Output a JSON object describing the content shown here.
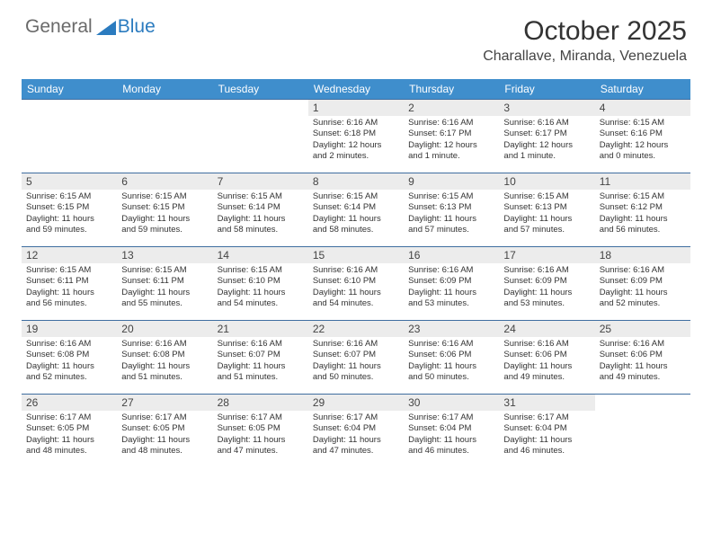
{
  "brand": {
    "part1": "General",
    "part2": "Blue"
  },
  "title": "October 2025",
  "location": "Charallave, Miranda, Venezuela",
  "accent_color": "#3f8ecc",
  "triangle_color": "#2b7bbf",
  "days_of_week": [
    "Sunday",
    "Monday",
    "Tuesday",
    "Wednesday",
    "Thursday",
    "Friday",
    "Saturday"
  ],
  "weeks": [
    [
      null,
      null,
      null,
      {
        "n": "1",
        "sunrise": "Sunrise: 6:16 AM",
        "sunset": "Sunset: 6:18 PM",
        "day1": "Daylight: 12 hours",
        "day2": "and 2 minutes."
      },
      {
        "n": "2",
        "sunrise": "Sunrise: 6:16 AM",
        "sunset": "Sunset: 6:17 PM",
        "day1": "Daylight: 12 hours",
        "day2": "and 1 minute."
      },
      {
        "n": "3",
        "sunrise": "Sunrise: 6:16 AM",
        "sunset": "Sunset: 6:17 PM",
        "day1": "Daylight: 12 hours",
        "day2": "and 1 minute."
      },
      {
        "n": "4",
        "sunrise": "Sunrise: 6:15 AM",
        "sunset": "Sunset: 6:16 PM",
        "day1": "Daylight: 12 hours",
        "day2": "and 0 minutes."
      }
    ],
    [
      {
        "n": "5",
        "sunrise": "Sunrise: 6:15 AM",
        "sunset": "Sunset: 6:15 PM",
        "day1": "Daylight: 11 hours",
        "day2": "and 59 minutes."
      },
      {
        "n": "6",
        "sunrise": "Sunrise: 6:15 AM",
        "sunset": "Sunset: 6:15 PM",
        "day1": "Daylight: 11 hours",
        "day2": "and 59 minutes."
      },
      {
        "n": "7",
        "sunrise": "Sunrise: 6:15 AM",
        "sunset": "Sunset: 6:14 PM",
        "day1": "Daylight: 11 hours",
        "day2": "and 58 minutes."
      },
      {
        "n": "8",
        "sunrise": "Sunrise: 6:15 AM",
        "sunset": "Sunset: 6:14 PM",
        "day1": "Daylight: 11 hours",
        "day2": "and 58 minutes."
      },
      {
        "n": "9",
        "sunrise": "Sunrise: 6:15 AM",
        "sunset": "Sunset: 6:13 PM",
        "day1": "Daylight: 11 hours",
        "day2": "and 57 minutes."
      },
      {
        "n": "10",
        "sunrise": "Sunrise: 6:15 AM",
        "sunset": "Sunset: 6:13 PM",
        "day1": "Daylight: 11 hours",
        "day2": "and 57 minutes."
      },
      {
        "n": "11",
        "sunrise": "Sunrise: 6:15 AM",
        "sunset": "Sunset: 6:12 PM",
        "day1": "Daylight: 11 hours",
        "day2": "and 56 minutes."
      }
    ],
    [
      {
        "n": "12",
        "sunrise": "Sunrise: 6:15 AM",
        "sunset": "Sunset: 6:11 PM",
        "day1": "Daylight: 11 hours",
        "day2": "and 56 minutes."
      },
      {
        "n": "13",
        "sunrise": "Sunrise: 6:15 AM",
        "sunset": "Sunset: 6:11 PM",
        "day1": "Daylight: 11 hours",
        "day2": "and 55 minutes."
      },
      {
        "n": "14",
        "sunrise": "Sunrise: 6:15 AM",
        "sunset": "Sunset: 6:10 PM",
        "day1": "Daylight: 11 hours",
        "day2": "and 54 minutes."
      },
      {
        "n": "15",
        "sunrise": "Sunrise: 6:16 AM",
        "sunset": "Sunset: 6:10 PM",
        "day1": "Daylight: 11 hours",
        "day2": "and 54 minutes."
      },
      {
        "n": "16",
        "sunrise": "Sunrise: 6:16 AM",
        "sunset": "Sunset: 6:09 PM",
        "day1": "Daylight: 11 hours",
        "day2": "and 53 minutes."
      },
      {
        "n": "17",
        "sunrise": "Sunrise: 6:16 AM",
        "sunset": "Sunset: 6:09 PM",
        "day1": "Daylight: 11 hours",
        "day2": "and 53 minutes."
      },
      {
        "n": "18",
        "sunrise": "Sunrise: 6:16 AM",
        "sunset": "Sunset: 6:09 PM",
        "day1": "Daylight: 11 hours",
        "day2": "and 52 minutes."
      }
    ],
    [
      {
        "n": "19",
        "sunrise": "Sunrise: 6:16 AM",
        "sunset": "Sunset: 6:08 PM",
        "day1": "Daylight: 11 hours",
        "day2": "and 52 minutes."
      },
      {
        "n": "20",
        "sunrise": "Sunrise: 6:16 AM",
        "sunset": "Sunset: 6:08 PM",
        "day1": "Daylight: 11 hours",
        "day2": "and 51 minutes."
      },
      {
        "n": "21",
        "sunrise": "Sunrise: 6:16 AM",
        "sunset": "Sunset: 6:07 PM",
        "day1": "Daylight: 11 hours",
        "day2": "and 51 minutes."
      },
      {
        "n": "22",
        "sunrise": "Sunrise: 6:16 AM",
        "sunset": "Sunset: 6:07 PM",
        "day1": "Daylight: 11 hours",
        "day2": "and 50 minutes."
      },
      {
        "n": "23",
        "sunrise": "Sunrise: 6:16 AM",
        "sunset": "Sunset: 6:06 PM",
        "day1": "Daylight: 11 hours",
        "day2": "and 50 minutes."
      },
      {
        "n": "24",
        "sunrise": "Sunrise: 6:16 AM",
        "sunset": "Sunset: 6:06 PM",
        "day1": "Daylight: 11 hours",
        "day2": "and 49 minutes."
      },
      {
        "n": "25",
        "sunrise": "Sunrise: 6:16 AM",
        "sunset": "Sunset: 6:06 PM",
        "day1": "Daylight: 11 hours",
        "day2": "and 49 minutes."
      }
    ],
    [
      {
        "n": "26",
        "sunrise": "Sunrise: 6:17 AM",
        "sunset": "Sunset: 6:05 PM",
        "day1": "Daylight: 11 hours",
        "day2": "and 48 minutes."
      },
      {
        "n": "27",
        "sunrise": "Sunrise: 6:17 AM",
        "sunset": "Sunset: 6:05 PM",
        "day1": "Daylight: 11 hours",
        "day2": "and 48 minutes."
      },
      {
        "n": "28",
        "sunrise": "Sunrise: 6:17 AM",
        "sunset": "Sunset: 6:05 PM",
        "day1": "Daylight: 11 hours",
        "day2": "and 47 minutes."
      },
      {
        "n": "29",
        "sunrise": "Sunrise: 6:17 AM",
        "sunset": "Sunset: 6:04 PM",
        "day1": "Daylight: 11 hours",
        "day2": "and 47 minutes."
      },
      {
        "n": "30",
        "sunrise": "Sunrise: 6:17 AM",
        "sunset": "Sunset: 6:04 PM",
        "day1": "Daylight: 11 hours",
        "day2": "and 46 minutes."
      },
      {
        "n": "31",
        "sunrise": "Sunrise: 6:17 AM",
        "sunset": "Sunset: 6:04 PM",
        "day1": "Daylight: 11 hours",
        "day2": "and 46 minutes."
      },
      null
    ]
  ]
}
